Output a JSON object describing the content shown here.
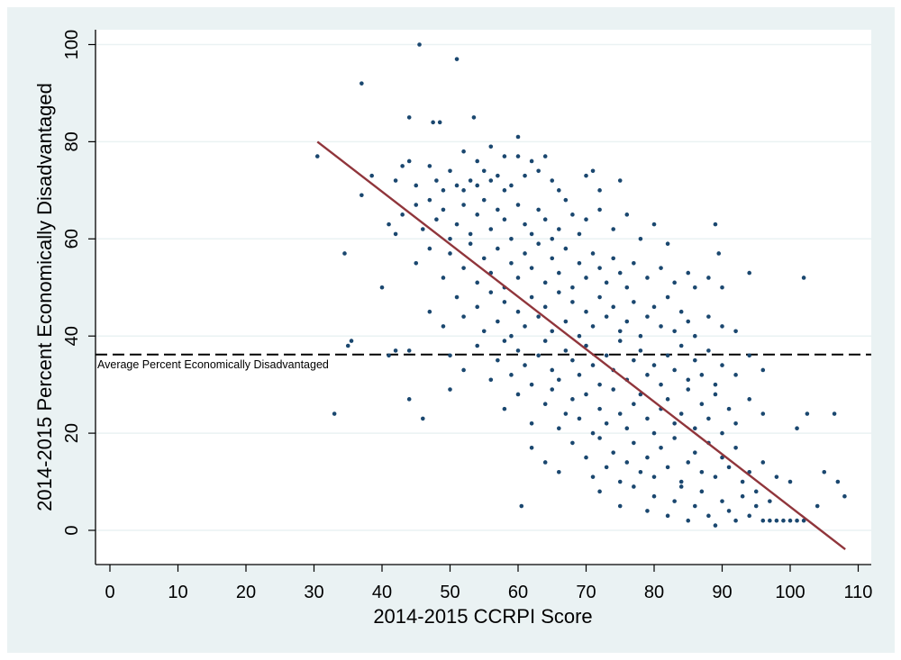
{
  "chart_data": {
    "type": "scatter",
    "title": "",
    "xlabel": "2014-2015 CCRPI Score",
    "ylabel": "2014-2015 Percent Economically Disadvantaged",
    "xlim": [
      -2,
      112
    ],
    "ylim": [
      -7,
      103
    ],
    "xticks": [
      0,
      10,
      20,
      30,
      40,
      50,
      60,
      70,
      80,
      90,
      100,
      110
    ],
    "yticks": [
      0,
      20,
      40,
      60,
      80,
      100
    ],
    "grid": "horizontal",
    "colors": {
      "points": "#1a476f",
      "fit_line": "#90353b",
      "reference_line": "#000000",
      "background": "#eaf2f3"
    },
    "fit_line": {
      "x": [
        30.5,
        108.1
      ],
      "y": [
        80,
        -3.9
      ]
    },
    "reference_line": {
      "y": 36.2,
      "label": "Average Percent Economically Disadvantaged",
      "style": "dashed"
    },
    "points": [
      [
        45.5,
        100
      ],
      [
        51,
        97
      ],
      [
        37,
        92
      ],
      [
        44,
        85
      ],
      [
        53.5,
        85
      ],
      [
        47.5,
        84
      ],
      [
        48.5,
        84
      ],
      [
        30.5,
        77
      ],
      [
        37,
        69
      ],
      [
        38.5,
        73
      ],
      [
        34.5,
        57
      ],
      [
        40,
        50
      ],
      [
        33,
        24
      ],
      [
        35,
        38
      ],
      [
        35.5,
        39
      ],
      [
        44,
        27
      ],
      [
        46,
        23
      ],
      [
        60.5,
        5
      ],
      [
        60,
        81
      ],
      [
        102,
        52
      ],
      [
        89,
        63
      ],
      [
        89.5,
        57
      ],
      [
        94,
        53
      ],
      [
        101,
        21
      ],
      [
        102.5,
        24
      ],
      [
        106.5,
        24
      ],
      [
        107,
        10
      ],
      [
        108,
        7
      ],
      [
        105,
        12
      ],
      [
        104,
        5
      ],
      [
        50,
        29
      ],
      [
        47,
        75
      ],
      [
        48,
        72
      ],
      [
        49,
        70
      ],
      [
        50,
        74
      ],
      [
        51,
        71
      ],
      [
        52,
        78
      ],
      [
        53,
        72
      ],
      [
        54,
        76
      ],
      [
        55,
        74
      ],
      [
        56,
        79
      ],
      [
        57,
        73
      ],
      [
        58,
        77
      ],
      [
        59,
        71
      ],
      [
        60,
        77
      ],
      [
        61,
        73
      ],
      [
        62,
        76
      ],
      [
        63,
        74
      ],
      [
        64,
        77
      ],
      [
        65,
        72
      ],
      [
        66,
        70
      ],
      [
        70,
        73
      ],
      [
        71,
        74
      ],
      [
        72,
        70
      ],
      [
        75,
        72
      ],
      [
        43,
        75
      ],
      [
        44,
        76
      ],
      [
        42,
        72
      ],
      [
        45,
        71
      ],
      [
        52,
        70
      ],
      [
        54,
        71
      ],
      [
        56,
        72
      ],
      [
        58,
        70
      ],
      [
        43,
        65
      ],
      [
        45,
        67
      ],
      [
        46,
        62
      ],
      [
        47,
        68
      ],
      [
        48,
        64
      ],
      [
        49,
        66
      ],
      [
        50,
        60
      ],
      [
        51,
        63
      ],
      [
        52,
        67
      ],
      [
        53,
        61
      ],
      [
        54,
        65
      ],
      [
        55,
        68
      ],
      [
        56,
        62
      ],
      [
        57,
        66
      ],
      [
        58,
        64
      ],
      [
        59,
        60
      ],
      [
        60,
        67
      ],
      [
        61,
        63
      ],
      [
        62,
        61
      ],
      [
        63,
        66
      ],
      [
        64,
        64
      ],
      [
        65,
        60
      ],
      [
        66,
        62
      ],
      [
        67,
        68
      ],
      [
        68,
        65
      ],
      [
        69,
        61
      ],
      [
        70,
        64
      ],
      [
        72,
        66
      ],
      [
        74,
        62
      ],
      [
        76,
        65
      ],
      [
        78,
        60
      ],
      [
        80,
        63
      ],
      [
        82,
        59
      ],
      [
        42,
        61
      ],
      [
        41,
        63
      ],
      [
        45,
        55
      ],
      [
        47,
        58
      ],
      [
        49,
        52
      ],
      [
        50,
        57
      ],
      [
        52,
        54
      ],
      [
        53,
        59
      ],
      [
        54,
        51
      ],
      [
        55,
        56
      ],
      [
        56,
        53
      ],
      [
        57,
        58
      ],
      [
        58,
        50
      ],
      [
        59,
        55
      ],
      [
        60,
        52
      ],
      [
        61,
        57
      ],
      [
        62,
        54
      ],
      [
        63,
        59
      ],
      [
        64,
        51
      ],
      [
        65,
        56
      ],
      [
        66,
        53
      ],
      [
        67,
        58
      ],
      [
        68,
        50
      ],
      [
        69,
        55
      ],
      [
        70,
        52
      ],
      [
        71,
        57
      ],
      [
        72,
        54
      ],
      [
        73,
        51
      ],
      [
        74,
        56
      ],
      [
        75,
        53
      ],
      [
        76,
        50
      ],
      [
        77,
        55
      ],
      [
        79,
        52
      ],
      [
        81,
        54
      ],
      [
        83,
        51
      ],
      [
        85,
        53
      ],
      [
        86,
        50
      ],
      [
        88,
        52
      ],
      [
        90,
        50
      ],
      [
        47,
        45
      ],
      [
        49,
        42
      ],
      [
        51,
        48
      ],
      [
        52,
        44
      ],
      [
        54,
        46
      ],
      [
        55,
        41
      ],
      [
        56,
        49
      ],
      [
        57,
        43
      ],
      [
        58,
        47
      ],
      [
        59,
        40
      ],
      [
        60,
        45
      ],
      [
        61,
        42
      ],
      [
        62,
        48
      ],
      [
        63,
        44
      ],
      [
        64,
        46
      ],
      [
        65,
        41
      ],
      [
        66,
        49
      ],
      [
        67,
        43
      ],
      [
        68,
        47
      ],
      [
        69,
        40
      ],
      [
        70,
        45
      ],
      [
        71,
        42
      ],
      [
        72,
        48
      ],
      [
        73,
        44
      ],
      [
        74,
        46
      ],
      [
        75,
        41
      ],
      [
        76,
        43
      ],
      [
        77,
        47
      ],
      [
        78,
        40
      ],
      [
        79,
        44
      ],
      [
        80,
        46
      ],
      [
        81,
        42
      ],
      [
        82,
        48
      ],
      [
        83,
        41
      ],
      [
        84,
        45
      ],
      [
        85,
        43
      ],
      [
        86,
        40
      ],
      [
        88,
        44
      ],
      [
        90,
        42
      ],
      [
        92,
        41
      ],
      [
        50,
        36
      ],
      [
        52,
        33
      ],
      [
        54,
        38
      ],
      [
        56,
        31
      ],
      [
        57,
        35
      ],
      [
        58,
        39
      ],
      [
        59,
        32
      ],
      [
        60,
        37
      ],
      [
        61,
        34
      ],
      [
        62,
        30
      ],
      [
        63,
        36
      ],
      [
        64,
        39
      ],
      [
        65,
        33
      ],
      [
        66,
        31
      ],
      [
        67,
        37
      ],
      [
        68,
        35
      ],
      [
        69,
        32
      ],
      [
        70,
        38
      ],
      [
        71,
        34
      ],
      [
        72,
        30
      ],
      [
        73,
        36
      ],
      [
        74,
        33
      ],
      [
        75,
        39
      ],
      [
        76,
        31
      ],
      [
        77,
        35
      ],
      [
        78,
        37
      ],
      [
        79,
        32
      ],
      [
        80,
        34
      ],
      [
        81,
        30
      ],
      [
        82,
        36
      ],
      [
        83,
        33
      ],
      [
        84,
        38
      ],
      [
        85,
        31
      ],
      [
        86,
        35
      ],
      [
        87,
        32
      ],
      [
        88,
        37
      ],
      [
        89,
        30
      ],
      [
        90,
        34
      ],
      [
        92,
        32
      ],
      [
        94,
        36
      ],
      [
        96,
        33
      ],
      [
        42,
        37
      ],
      [
        41,
        36
      ],
      [
        44,
        37
      ],
      [
        58,
        25
      ],
      [
        60,
        28
      ],
      [
        62,
        22
      ],
      [
        64,
        26
      ],
      [
        65,
        29
      ],
      [
        66,
        21
      ],
      [
        67,
        24
      ],
      [
        68,
        27
      ],
      [
        69,
        23
      ],
      [
        70,
        28
      ],
      [
        71,
        20
      ],
      [
        72,
        25
      ],
      [
        73,
        22
      ],
      [
        74,
        29
      ],
      [
        75,
        24
      ],
      [
        76,
        21
      ],
      [
        77,
        26
      ],
      [
        78,
        28
      ],
      [
        79,
        23
      ],
      [
        80,
        20
      ],
      [
        81,
        25
      ],
      [
        82,
        27
      ],
      [
        83,
        22
      ],
      [
        84,
        24
      ],
      [
        85,
        29
      ],
      [
        86,
        21
      ],
      [
        87,
        26
      ],
      [
        88,
        23
      ],
      [
        89,
        28
      ],
      [
        90,
        20
      ],
      [
        91,
        25
      ],
      [
        92,
        22
      ],
      [
        94,
        27
      ],
      [
        96,
        24
      ],
      [
        62,
        17
      ],
      [
        64,
        14
      ],
      [
        66,
        12
      ],
      [
        68,
        18
      ],
      [
        70,
        15
      ],
      [
        71,
        11
      ],
      [
        72,
        19
      ],
      [
        73,
        13
      ],
      [
        74,
        16
      ],
      [
        75,
        10
      ],
      [
        76,
        14
      ],
      [
        77,
        18
      ],
      [
        78,
        12
      ],
      [
        79,
        15
      ],
      [
        80,
        11
      ],
      [
        81,
        17
      ],
      [
        82,
        13
      ],
      [
        83,
        19
      ],
      [
        84,
        10
      ],
      [
        85,
        14
      ],
      [
        86,
        16
      ],
      [
        87,
        12
      ],
      [
        88,
        18
      ],
      [
        89,
        11
      ],
      [
        90,
        15
      ],
      [
        91,
        13
      ],
      [
        92,
        17
      ],
      [
        93,
        10
      ],
      [
        94,
        12
      ],
      [
        96,
        14
      ],
      [
        98,
        11
      ],
      [
        100,
        10
      ],
      [
        72,
        8
      ],
      [
        75,
        5
      ],
      [
        77,
        9
      ],
      [
        79,
        4
      ],
      [
        80,
        7
      ],
      [
        82,
        3
      ],
      [
        83,
        6
      ],
      [
        84,
        9
      ],
      [
        85,
        2
      ],
      [
        86,
        5
      ],
      [
        87,
        8
      ],
      [
        88,
        3
      ],
      [
        89,
        1
      ],
      [
        90,
        6
      ],
      [
        91,
        4
      ],
      [
        92,
        2
      ],
      [
        93,
        7
      ],
      [
        94,
        3
      ],
      [
        95,
        5
      ],
      [
        96,
        2
      ],
      [
        97,
        2
      ],
      [
        98,
        2
      ],
      [
        99,
        2
      ],
      [
        100,
        2
      ],
      [
        101,
        2
      ],
      [
        102,
        2
      ],
      [
        95,
        8
      ],
      [
        97,
        6
      ]
    ]
  }
}
